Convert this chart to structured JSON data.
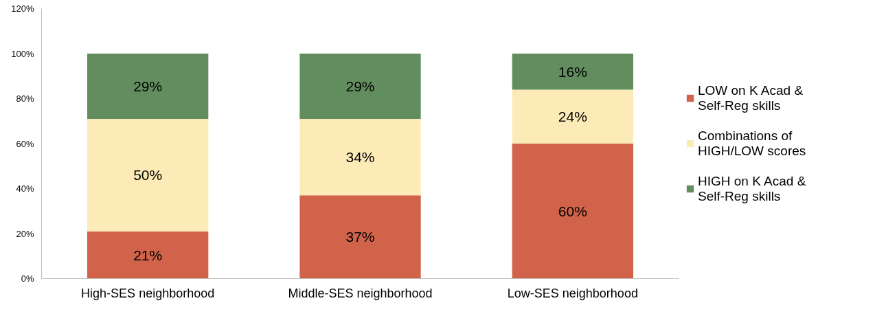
{
  "chart_data": {
    "type": "bar",
    "stacked": true,
    "categories": [
      "High-SES neighborhood",
      "Middle-SES neighborhood",
      "Low-SES neighborhood"
    ],
    "series": [
      {
        "name": "LOW on K Acad & Self-Reg skills",
        "color": "#d0634a",
        "values": [
          21,
          37,
          60
        ],
        "value_labels": [
          "21%",
          "37%",
          "60%"
        ]
      },
      {
        "name": "Combinations of HIGH/LOW scores",
        "color": "#fdebb7",
        "values": [
          50,
          34,
          24
        ],
        "value_labels": [
          "50%",
          "34%",
          "24%"
        ]
      },
      {
        "name": "HIGH on K Acad & Self-Reg skills",
        "color": "#628e5f",
        "values": [
          29,
          29,
          16
        ],
        "value_labels": [
          "29%",
          "29%",
          "16%"
        ]
      }
    ],
    "ylim": [
      0,
      120
    ],
    "yticks": [
      {
        "value": 0,
        "label": "0%"
      },
      {
        "value": 20,
        "label": "20%"
      },
      {
        "value": 40,
        "label": "40%"
      },
      {
        "value": 60,
        "label": "60%"
      },
      {
        "value": 80,
        "label": "80%"
      },
      {
        "value": 100,
        "label": "100%"
      },
      {
        "value": 120,
        "label": "120%"
      }
    ],
    "grid": false,
    "legend": "right"
  }
}
